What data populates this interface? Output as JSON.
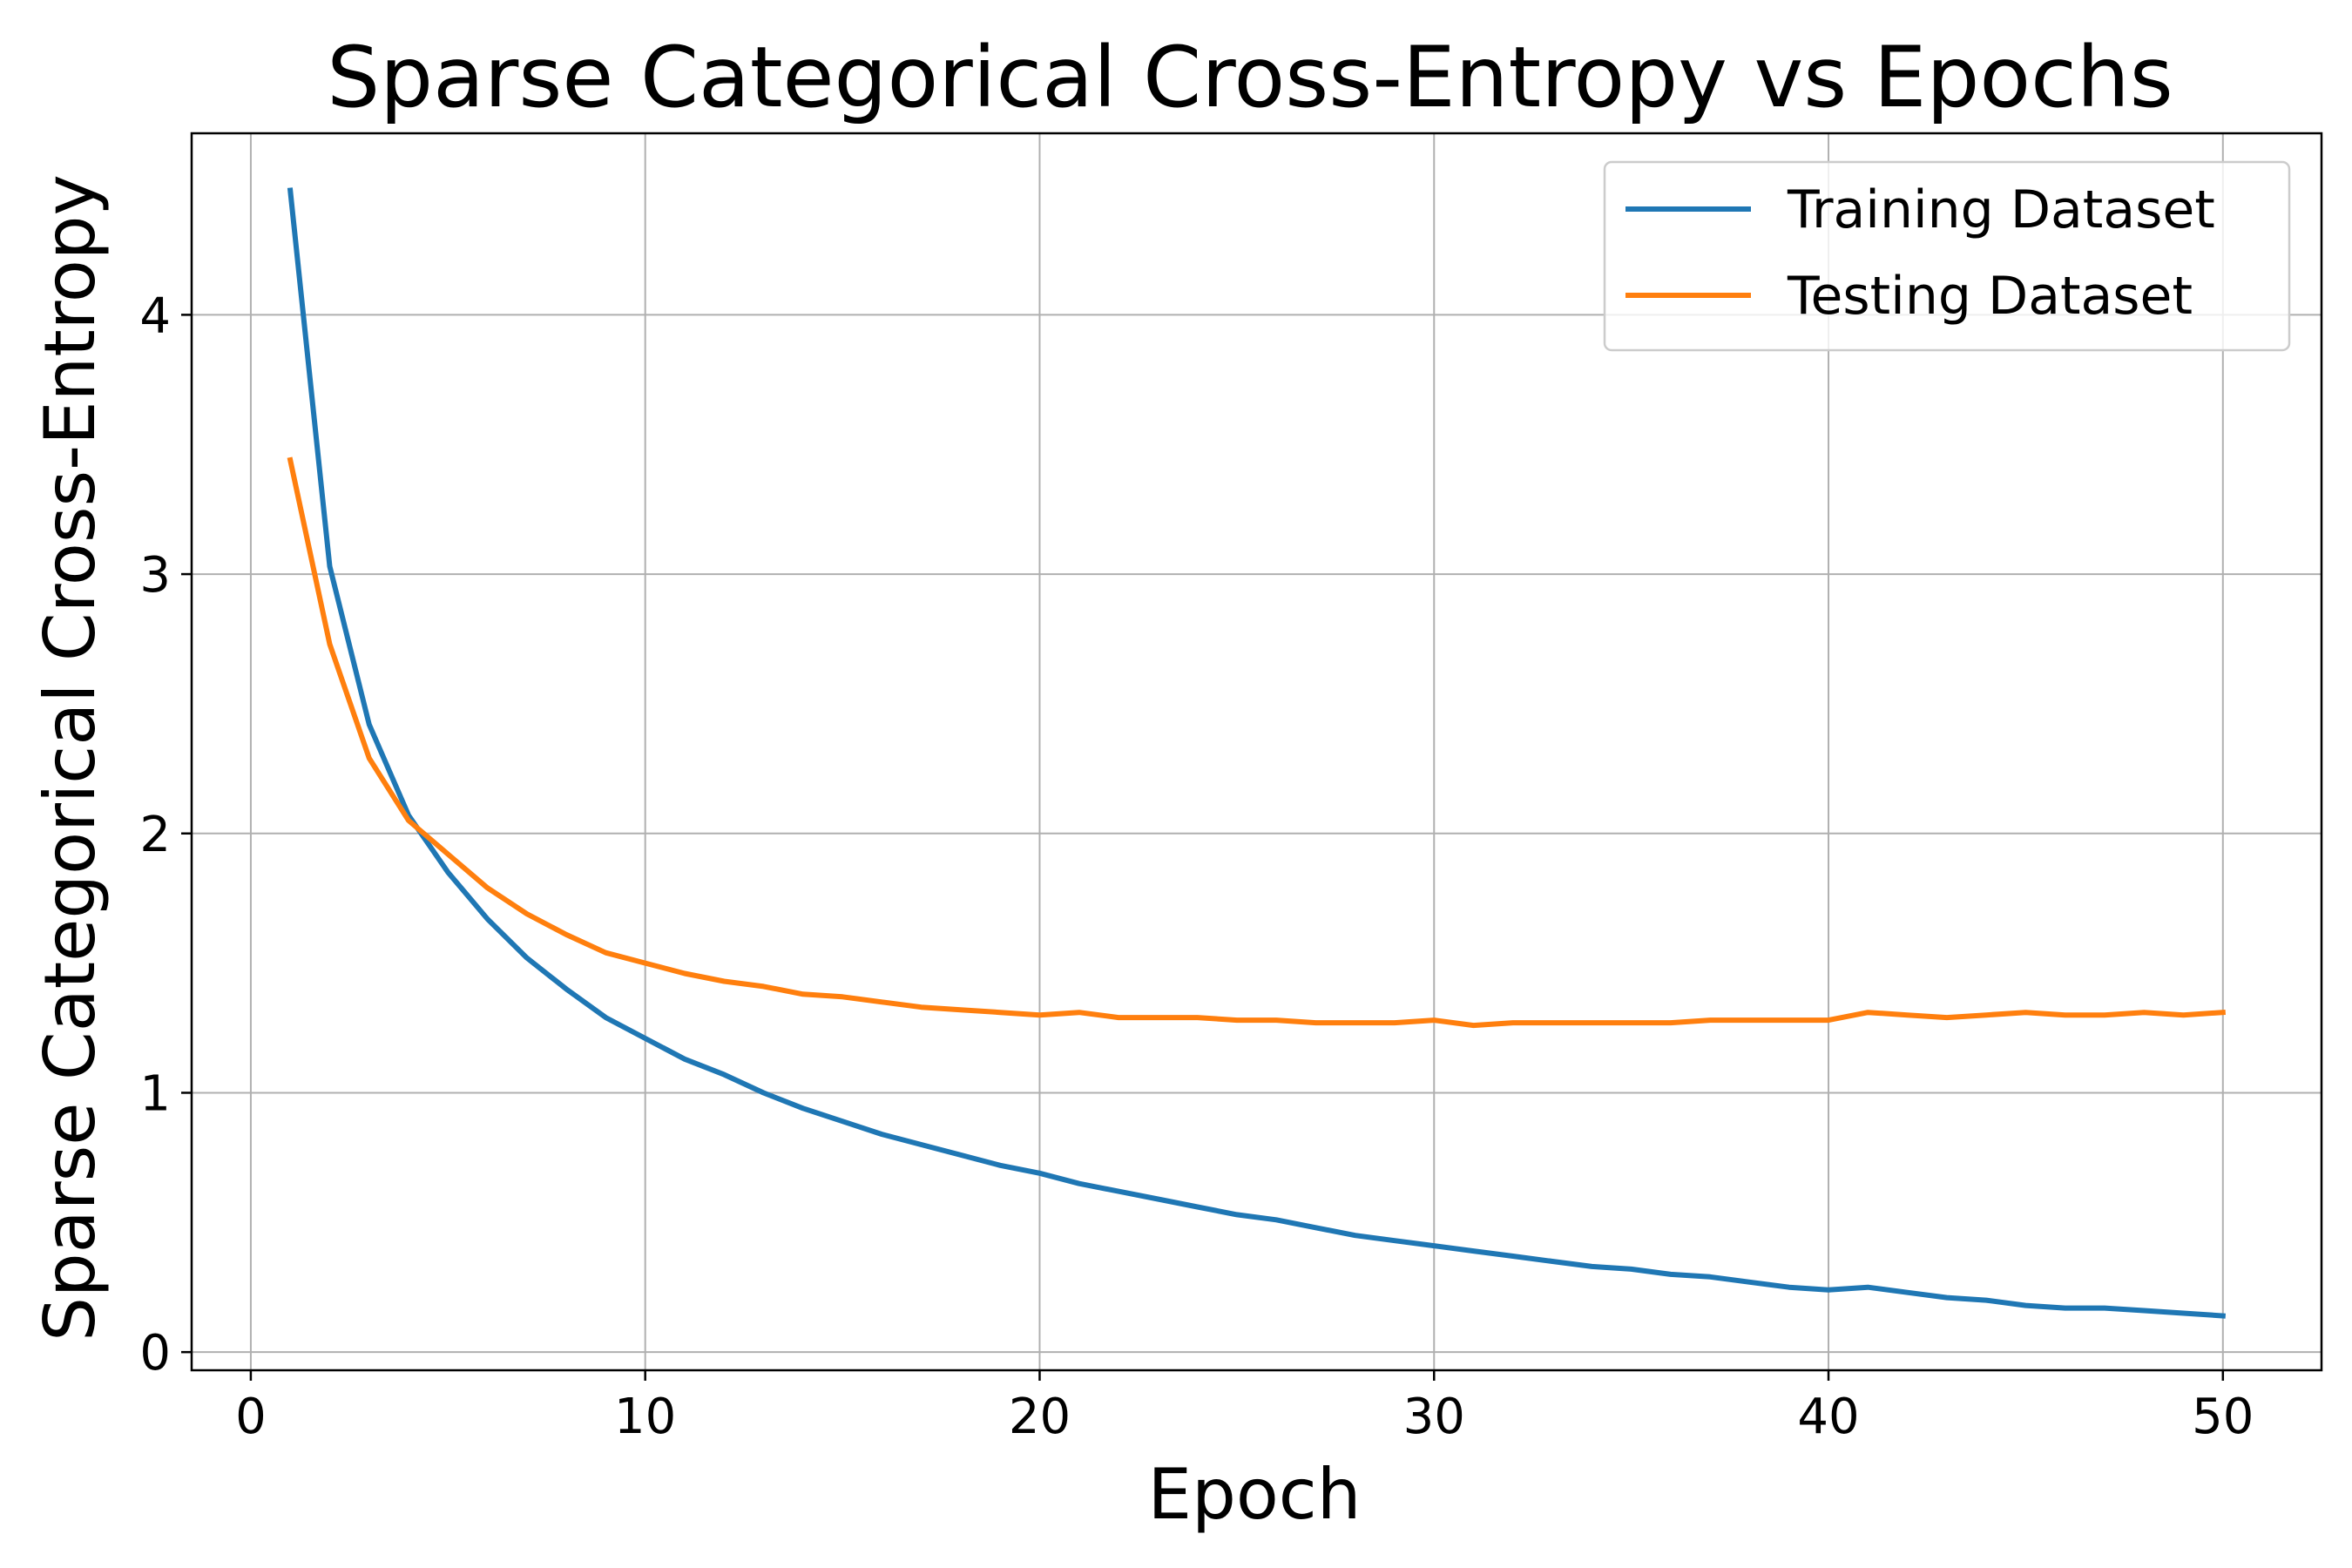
{
  "chart_data": {
    "type": "line",
    "title": "Sparse Categorical Cross-Entropy vs Epochs",
    "xlabel": "Epoch",
    "ylabel": "Sparse Categorical Cross-Entropy",
    "xlim": [
      -1.5,
      52.5
    ],
    "ylim": [
      -0.07,
      4.7
    ],
    "xticks": [
      0,
      10,
      20,
      30,
      40,
      50
    ],
    "yticks": [
      0,
      1,
      2,
      3,
      4
    ],
    "grid": true,
    "legend_position": "top-right",
    "x": [
      1,
      2,
      3,
      4,
      5,
      6,
      7,
      8,
      9,
      10,
      11,
      12,
      13,
      14,
      15,
      16,
      17,
      18,
      19,
      20,
      21,
      22,
      23,
      24,
      25,
      26,
      27,
      28,
      29,
      30,
      31,
      32,
      33,
      34,
      35,
      36,
      37,
      38,
      39,
      40,
      41,
      42,
      43,
      44,
      45,
      46,
      47,
      48,
      49,
      50
    ],
    "series": [
      {
        "name": "Training Dataset",
        "color": "#1f77b4",
        "values": [
          4.48,
          3.03,
          2.42,
          2.07,
          1.85,
          1.67,
          1.52,
          1.4,
          1.29,
          1.21,
          1.13,
          1.07,
          1.0,
          0.94,
          0.89,
          0.84,
          0.8,
          0.76,
          0.72,
          0.69,
          0.65,
          0.62,
          0.59,
          0.56,
          0.53,
          0.51,
          0.48,
          0.45,
          0.43,
          0.41,
          0.39,
          0.37,
          0.35,
          0.33,
          0.32,
          0.3,
          0.29,
          0.27,
          0.25,
          0.24,
          0.25,
          0.23,
          0.21,
          0.2,
          0.18,
          0.17,
          0.17,
          0.16,
          0.15,
          0.14
        ]
      },
      {
        "name": "Testing Dataset",
        "color": "#ff7f0e",
        "values": [
          3.44,
          2.73,
          2.29,
          2.05,
          1.92,
          1.79,
          1.69,
          1.61,
          1.54,
          1.5,
          1.46,
          1.43,
          1.41,
          1.38,
          1.37,
          1.35,
          1.33,
          1.32,
          1.31,
          1.3,
          1.31,
          1.29,
          1.29,
          1.29,
          1.28,
          1.28,
          1.27,
          1.27,
          1.27,
          1.28,
          1.26,
          1.27,
          1.27,
          1.27,
          1.27,
          1.27,
          1.28,
          1.28,
          1.28,
          1.28,
          1.31,
          1.3,
          1.29,
          1.3,
          1.31,
          1.3,
          1.3,
          1.31,
          1.3,
          1.31
        ]
      }
    ]
  }
}
